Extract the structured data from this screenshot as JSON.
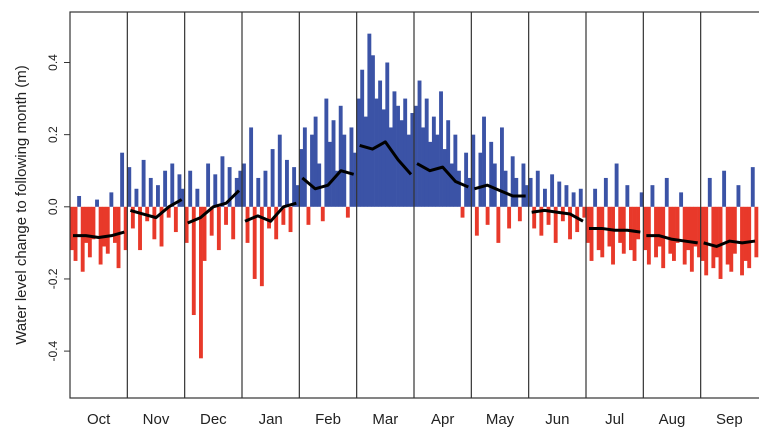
{
  "chart_data": {
    "type": "bar",
    "y_label": "Water level change to following month (m)",
    "positive_color": "#3b53a6",
    "negative_color": "#e8392a",
    "trend_color": "#000000",
    "ylim": [
      -0.53,
      0.54
    ],
    "yticks": [
      -0.4,
      -0.2,
      {
        "value": 0,
        "label": "0.0"
      },
      0.2,
      0.4
    ],
    "months": [
      {
        "label": "Oct",
        "values": [
          -0.12,
          -0.15,
          0.03,
          -0.18,
          -0.1,
          -0.14,
          -0.09,
          0.02,
          -0.16,
          -0.11,
          -0.13,
          0.04,
          -0.1,
          -0.17,
          0.15,
          -0.12
        ],
        "trend": [
          -0.08,
          -0.08,
          -0.085,
          -0.08,
          -0.07
        ]
      },
      {
        "label": "Nov",
        "values": [
          0.11,
          -0.06,
          0.05,
          -0.12,
          0.13,
          -0.04,
          0.08,
          -0.09,
          0.06,
          -0.11,
          0.1,
          -0.03,
          0.12,
          -0.07,
          0.09,
          0.05
        ],
        "trend": [
          -0.01,
          -0.02,
          -0.03,
          0,
          0.02
        ]
      },
      {
        "label": "Dec",
        "values": [
          -0.1,
          0.1,
          -0.3,
          0.05,
          -0.42,
          -0.15,
          0.12,
          -0.08,
          0.09,
          -0.12,
          0.14,
          -0.05,
          0.11,
          -0.09,
          0.08,
          0.1
        ],
        "trend": [
          -0.045,
          -0.03,
          0,
          0.01,
          0.045
        ]
      },
      {
        "label": "Jan",
        "values": [
          0.12,
          -0.1,
          0.22,
          -0.2,
          0.08,
          -0.22,
          0.1,
          -0.06,
          0.16,
          -0.09,
          0.2,
          -0.05,
          0.13,
          -0.07,
          0.11,
          0.06
        ],
        "trend": [
          -0.04,
          -0.025,
          -0.04,
          0,
          0.01
        ]
      },
      {
        "label": "Feb",
        "values": [
          0.16,
          0.22,
          -0.05,
          0.2,
          0.25,
          0.12,
          -0.04,
          0.3,
          0.18,
          0.24,
          0.1,
          0.28,
          0.2,
          -0.03,
          0.22,
          0.15
        ],
        "trend": [
          0.08,
          0.05,
          0.06,
          0.1,
          0.09
        ]
      },
      {
        "label": "Mar",
        "values": [
          0.3,
          0.38,
          0.25,
          0.48,
          0.42,
          0.3,
          0.35,
          0.27,
          0.4,
          0.22,
          0.32,
          0.28,
          0.24,
          0.3,
          0.2,
          0.26
        ],
        "trend": [
          0.17,
          0.16,
          0.18,
          0.13,
          0.09
        ]
      },
      {
        "label": "Apr",
        "values": [
          0.28,
          0.35,
          0.22,
          0.3,
          0.18,
          0.25,
          0.2,
          0.32,
          0.16,
          0.24,
          0.12,
          0.2,
          0.1,
          -0.03,
          0.15,
          0.08
        ],
        "trend": [
          0.12,
          0.1,
          0.11,
          0.07,
          0.055
        ]
      },
      {
        "label": "May",
        "values": [
          0.2,
          -0.08,
          0.15,
          0.25,
          -0.05,
          0.18,
          0.12,
          -0.1,
          0.22,
          0.1,
          -0.06,
          0.14,
          0.08,
          -0.04,
          0.12,
          0.06
        ],
        "trend": [
          0.05,
          0.06,
          0.045,
          0.03,
          0.03
        ]
      },
      {
        "label": "Jun",
        "values": [
          0.08,
          -0.06,
          0.1,
          -0.08,
          0.05,
          -0.05,
          0.09,
          -0.1,
          0.07,
          -0.04,
          0.06,
          -0.09,
          0.04,
          -0.07,
          0.05,
          -0.03
        ],
        "trend": [
          -0.015,
          -0.01,
          -0.015,
          -0.02,
          -0.04
        ]
      },
      {
        "label": "Jul",
        "values": [
          -0.1,
          -0.15,
          0.05,
          -0.12,
          -0.14,
          0.08,
          -0.11,
          -0.16,
          0.12,
          -0.1,
          -0.13,
          0.06,
          -0.12,
          -0.15,
          -0.09,
          0.04
        ],
        "trend": [
          -0.06,
          -0.06,
          -0.065,
          -0.065,
          -0.07
        ]
      },
      {
        "label": "Aug",
        "values": [
          -0.12,
          -0.16,
          0.06,
          -0.14,
          -0.11,
          -0.17,
          0.08,
          -0.13,
          -0.15,
          -0.1,
          0.04,
          -0.16,
          -0.12,
          -0.18,
          -0.11,
          -0.14
        ],
        "trend": [
          -0.08,
          -0.08,
          -0.09,
          -0.095,
          -0.1
        ]
      },
      {
        "label": "Sep",
        "values": [
          -0.15,
          -0.19,
          0.08,
          -0.17,
          -0.14,
          -0.2,
          0.1,
          -0.16,
          -0.18,
          -0.13,
          0.06,
          -0.19,
          -0.15,
          -0.17,
          0.11,
          -0.14
        ],
        "trend": [
          -0.1,
          -0.11,
          -0.095,
          -0.1,
          -0.095
        ]
      }
    ]
  }
}
